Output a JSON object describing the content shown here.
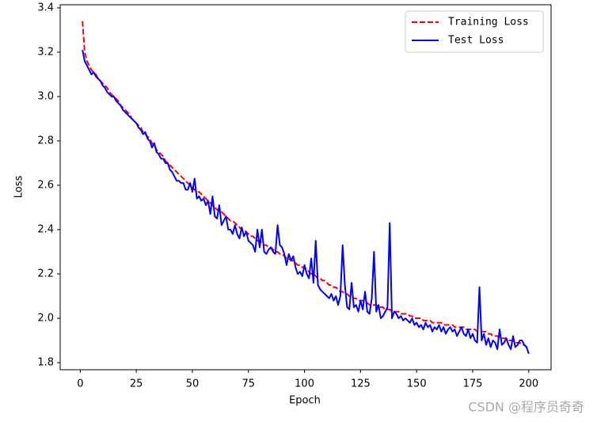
{
  "chart_data": {
    "type": "line",
    "xlabel": "Epoch",
    "ylabel": "Loss",
    "xlim": [
      -8.95,
      209.95
    ],
    "ylim": [
      1.768,
      3.414
    ],
    "xticks": [
      0,
      25,
      50,
      75,
      100,
      125,
      150,
      175,
      200
    ],
    "yticks": [
      1.8,
      {
        "value": 2,
        "label": "2.0"
      },
      2.2,
      2.4,
      2.6,
      2.8,
      {
        "value": 3,
        "label": "3.0"
      },
      3.2,
      3.4
    ],
    "legend": "upper right",
    "x": [
      1,
      2,
      3,
      4,
      5,
      6,
      7,
      8,
      9,
      10,
      11,
      12,
      13,
      14,
      15,
      16,
      17,
      18,
      19,
      20,
      21,
      22,
      23,
      24,
      25,
      26,
      27,
      28,
      29,
      30,
      31,
      32,
      33,
      34,
      35,
      36,
      37,
      38,
      39,
      40,
      41,
      42,
      43,
      44,
      45,
      46,
      47,
      48,
      49,
      50,
      51,
      52,
      53,
      54,
      55,
      56,
      57,
      58,
      59,
      60,
      61,
      62,
      63,
      64,
      65,
      66,
      67,
      68,
      69,
      70,
      71,
      72,
      73,
      74,
      75,
      76,
      77,
      78,
      79,
      80,
      81,
      82,
      83,
      84,
      85,
      86,
      87,
      88,
      89,
      90,
      91,
      92,
      93,
      94,
      95,
      96,
      97,
      98,
      99,
      100,
      101,
      102,
      103,
      104,
      105,
      106,
      107,
      108,
      109,
      110,
      111,
      112,
      113,
      114,
      115,
      116,
      117,
      118,
      119,
      120,
      121,
      122,
      123,
      124,
      125,
      126,
      127,
      128,
      129,
      130,
      131,
      132,
      133,
      134,
      135,
      136,
      137,
      138,
      139,
      140,
      141,
      142,
      143,
      144,
      145,
      146,
      147,
      148,
      149,
      150,
      151,
      152,
      153,
      154,
      155,
      156,
      157,
      158,
      159,
      160,
      161,
      162,
      163,
      164,
      165,
      166,
      167,
      168,
      169,
      170,
      171,
      172,
      173,
      174,
      175,
      176,
      177,
      178,
      179,
      180,
      181,
      182,
      183,
      184,
      185,
      186,
      187,
      188,
      189,
      190,
      191,
      192,
      193,
      194,
      195,
      196,
      197,
      198,
      199,
      200
    ],
    "series": [
      {
        "name": "Training Loss",
        "color": "#ff0000",
        "dash": true,
        "values": [
          3.34,
          3.2,
          3.16,
          3.14,
          3.12,
          3.11,
          3.1,
          3.08,
          3.07,
          3.06,
          3.05,
          3.04,
          3.02,
          3.01,
          3.0,
          2.99,
          2.98,
          2.96,
          2.95,
          2.94,
          2.93,
          2.92,
          2.9,
          2.89,
          2.88,
          2.87,
          2.86,
          2.84,
          2.83,
          2.82,
          2.81,
          2.79,
          2.78,
          2.76,
          2.75,
          2.74,
          2.73,
          2.71,
          2.7,
          2.69,
          2.68,
          2.67,
          2.66,
          2.65,
          2.64,
          2.63,
          2.62,
          2.61,
          2.6,
          2.59,
          2.58,
          2.57,
          2.57,
          2.56,
          2.55,
          2.54,
          2.53,
          2.52,
          2.51,
          2.5,
          2.49,
          2.48,
          2.48,
          2.47,
          2.46,
          2.45,
          2.44,
          2.44,
          2.43,
          2.42,
          2.41,
          2.4,
          2.4,
          2.39,
          2.38,
          2.37,
          2.37,
          2.36,
          2.35,
          2.35,
          2.34,
          2.33,
          2.33,
          2.32,
          2.32,
          2.31,
          2.3,
          2.3,
          2.29,
          2.29,
          2.28,
          2.27,
          2.27,
          2.26,
          2.26,
          2.25,
          2.24,
          2.24,
          2.23,
          2.23,
          2.22,
          2.21,
          2.2,
          2.2,
          2.19,
          2.18,
          2.18,
          2.17,
          2.17,
          2.16,
          2.15,
          2.15,
          2.14,
          2.14,
          2.13,
          2.12,
          2.12,
          2.11,
          2.11,
          2.1,
          2.1,
          2.09,
          2.09,
          2.08,
          2.08,
          2.08,
          2.07,
          2.07,
          2.06,
          2.06,
          2.06,
          2.06,
          2.05,
          2.05,
          2.05,
          2.04,
          2.04,
          2.04,
          2.03,
          2.03,
          2.03,
          2.03,
          2.02,
          2.02,
          2.02,
          2.02,
          2.01,
          2.01,
          2.0,
          2.0,
          2.0,
          2.0,
          1.99,
          1.99,
          1.99,
          1.99,
          1.98,
          1.98,
          1.98,
          1.98,
          1.98,
          1.97,
          1.97,
          1.97,
          1.97,
          1.97,
          1.96,
          1.96,
          1.96,
          1.96,
          1.96,
          1.95,
          1.95,
          1.95,
          1.95,
          1.95,
          1.94,
          1.94,
          1.94,
          1.94,
          1.94,
          1.93,
          1.93,
          1.92,
          1.92,
          1.92,
          1.91,
          1.91,
          1.91,
          1.91,
          1.9,
          1.9,
          1.9,
          1.89,
          1.89,
          1.89,
          1.88,
          1.88,
          1.87,
          1.87
        ]
      },
      {
        "name": "Test Loss",
        "color": "#0000ff",
        "dash": false,
        "values": [
          3.21,
          3.16,
          3.14,
          3.12,
          3.1,
          3.11,
          3.09,
          3.08,
          3.07,
          3.05,
          3.04,
          3.02,
          3.01,
          3.0,
          3.0,
          2.98,
          2.97,
          2.96,
          2.94,
          2.93,
          2.92,
          2.91,
          2.9,
          2.89,
          2.88,
          2.86,
          2.85,
          2.83,
          2.84,
          2.81,
          2.8,
          2.77,
          2.79,
          2.75,
          2.74,
          2.72,
          2.72,
          2.7,
          2.7,
          2.67,
          2.66,
          2.64,
          2.62,
          2.62,
          2.61,
          2.61,
          2.58,
          2.58,
          2.61,
          2.57,
          2.63,
          2.54,
          2.55,
          2.53,
          2.54,
          2.51,
          2.53,
          2.47,
          2.55,
          2.46,
          2.45,
          2.51,
          2.42,
          2.44,
          2.46,
          2.4,
          2.4,
          2.38,
          2.42,
          2.38,
          2.36,
          2.41,
          2.37,
          2.39,
          2.35,
          2.34,
          2.33,
          2.3,
          2.4,
          2.32,
          2.4,
          2.3,
          2.29,
          2.31,
          2.32,
          2.3,
          2.29,
          2.42,
          2.33,
          2.32,
          2.29,
          2.24,
          2.29,
          2.26,
          2.28,
          2.23,
          2.2,
          2.21,
          2.19,
          2.24,
          2.2,
          2.18,
          2.27,
          2.16,
          2.35,
          2.15,
          2.13,
          2.12,
          2.11,
          2.1,
          2.09,
          2.11,
          2.08,
          2.1,
          2.06,
          2.1,
          2.33,
          2.15,
          2.05,
          2.04,
          2.16,
          2.05,
          2.06,
          2.03,
          2.08,
          2.04,
          2.12,
          2.03,
          2.02,
          2.09,
          2.3,
          2.03,
          2.06,
          2.0,
          2.01,
          2.03,
          2.05,
          2.43,
          2.0,
          2.03,
          2.02,
          2.0,
          2.01,
          1.99,
          2.0,
          1.99,
          1.98,
          2.0,
          1.97,
          1.98,
          1.96,
          1.97,
          1.95,
          1.98,
          1.96,
          1.97,
          1.94,
          1.96,
          1.95,
          1.97,
          1.94,
          1.96,
          1.93,
          1.95,
          1.96,
          1.94,
          1.95,
          1.92,
          1.94,
          1.96,
          1.93,
          1.92,
          1.95,
          1.91,
          1.93,
          1.9,
          1.89,
          2.14,
          1.9,
          1.93,
          1.88,
          1.91,
          1.87,
          1.9,
          1.89,
          1.86,
          1.95,
          1.88,
          1.89,
          1.91,
          1.88,
          1.86,
          1.92,
          1.87,
          1.88,
          1.9,
          1.9,
          1.88,
          1.87,
          1.84
        ]
      }
    ]
  },
  "watermark": "CSDN @程序员奇奇"
}
